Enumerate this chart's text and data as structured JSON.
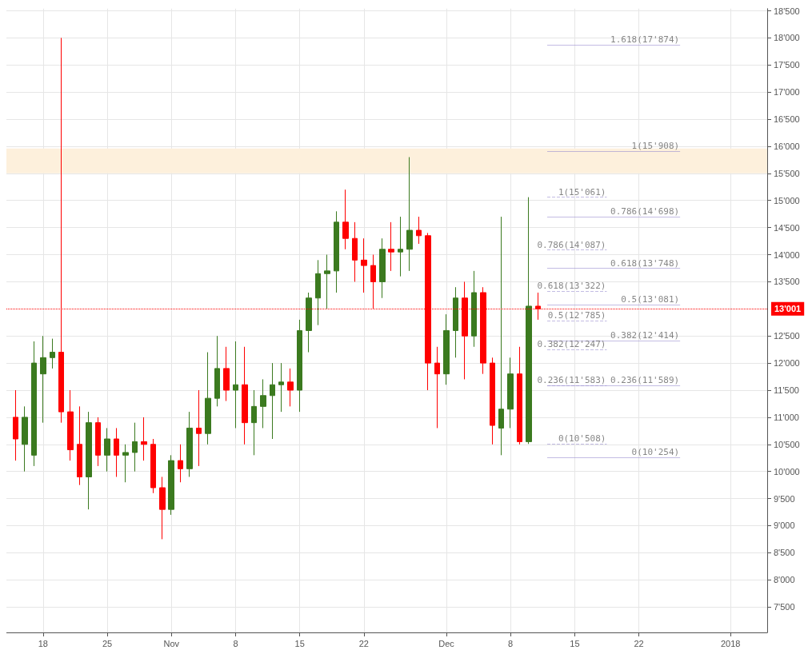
{
  "chart_data": {
    "type": "candlestick",
    "x": [
      "2017-10-15",
      "2017-10-16",
      "2017-10-17",
      "2017-10-18",
      "2017-10-19",
      "2017-10-20",
      "2017-10-21",
      "2017-10-22",
      "2017-10-23",
      "2017-10-24",
      "2017-10-25",
      "2017-10-26",
      "2017-10-27",
      "2017-10-28",
      "2017-10-29",
      "2017-10-30",
      "2017-10-31",
      "2017-11-01",
      "2017-11-02",
      "2017-11-03",
      "2017-11-04",
      "2017-11-05",
      "2017-11-06",
      "2017-11-07",
      "2017-11-08",
      "2017-11-09",
      "2017-11-10",
      "2017-11-11",
      "2017-11-12",
      "2017-11-13",
      "2017-11-14",
      "2017-11-15",
      "2017-11-16",
      "2017-11-17",
      "2017-11-18",
      "2017-11-19",
      "2017-11-20",
      "2017-11-21",
      "2017-11-22",
      "2017-11-23",
      "2017-11-24",
      "2017-11-25",
      "2017-11-26",
      "2017-11-27",
      "2017-11-28",
      "2017-11-29",
      "2017-11-30",
      "2017-12-01",
      "2017-12-02",
      "2017-12-03",
      "2017-12-04",
      "2017-12-05",
      "2017-12-06",
      "2017-12-07",
      "2017-12-08",
      "2017-12-09",
      "2017-12-10",
      "2017-12-11"
    ],
    "ohlc": [
      [
        11000,
        11500,
        10200,
        10600
      ],
      [
        10500,
        11200,
        10000,
        11000
      ],
      [
        10300,
        12400,
        10100,
        12000
      ],
      [
        11800,
        12500,
        10900,
        12100
      ],
      [
        12100,
        12450,
        11900,
        12200
      ],
      [
        12200,
        18000,
        10900,
        11100
      ],
      [
        11100,
        11500,
        10200,
        10400
      ],
      [
        10500,
        11200,
        9750,
        9900
      ],
      [
        9900,
        11100,
        9300,
        10900
      ],
      [
        10900,
        11000,
        10100,
        10300
      ],
      [
        10300,
        10800,
        10000,
        10600
      ],
      [
        10600,
        10800,
        9900,
        10300
      ],
      [
        10300,
        10500,
        9800,
        10350
      ],
      [
        10350,
        10900,
        10000,
        10550
      ],
      [
        10550,
        11000,
        10200,
        10500
      ],
      [
        10500,
        10600,
        9600,
        9700
      ],
      [
        9700,
        9900,
        8750,
        9300
      ],
      [
        9300,
        10300,
        9200,
        10200
      ],
      [
        10200,
        10500,
        9800,
        10050
      ],
      [
        10050,
        11100,
        9900,
        10800
      ],
      [
        10800,
        11500,
        10100,
        10700
      ],
      [
        10700,
        12200,
        10500,
        11350
      ],
      [
        11350,
        12500,
        11200,
        11900
      ],
      [
        11900,
        12300,
        11300,
        11500
      ],
      [
        11500,
        12400,
        10800,
        11600
      ],
      [
        11600,
        12300,
        10500,
        10900
      ],
      [
        10900,
        11500,
        10300,
        11200
      ],
      [
        11200,
        11700,
        10800,
        11400
      ],
      [
        11400,
        12000,
        10600,
        11600
      ],
      [
        11600,
        12000,
        11100,
        11650
      ],
      [
        11650,
        11900,
        11200,
        11500
      ],
      [
        11500,
        12800,
        11100,
        12600
      ],
      [
        12600,
        13300,
        12200,
        13200
      ],
      [
        13200,
        13900,
        12700,
        13650
      ],
      [
        13650,
        14000,
        13000,
        13700
      ],
      [
        13700,
        14800,
        13300,
        14600
      ],
      [
        14600,
        15200,
        14100,
        14300
      ],
      [
        14300,
        14600,
        13500,
        13900
      ],
      [
        13900,
        14300,
        13300,
        13800
      ],
      [
        13800,
        14000,
        13000,
        13500
      ],
      [
        13500,
        14300,
        13200,
        14100
      ],
      [
        14100,
        14600,
        13700,
        14050
      ],
      [
        14050,
        14700,
        13600,
        14100
      ],
      [
        14100,
        15800,
        13700,
        14450
      ],
      [
        14450,
        14700,
        14200,
        14350
      ],
      [
        14350,
        14400,
        11500,
        12000
      ],
      [
        12000,
        12300,
        10800,
        11800
      ],
      [
        11800,
        12900,
        11600,
        12600
      ],
      [
        12600,
        13400,
        12100,
        13200
      ],
      [
        13200,
        13500,
        11700,
        12500
      ],
      [
        12500,
        13700,
        12300,
        13300
      ],
      [
        13300,
        13400,
        11800,
        12000
      ],
      [
        12000,
        12100,
        10500,
        10850
      ],
      [
        10800,
        14700,
        10300,
        11150
      ],
      [
        11150,
        12100,
        10800,
        11800
      ],
      [
        11800,
        12300,
        10500,
        10550
      ],
      [
        10550,
        15061,
        10508,
        13050
      ],
      [
        13050,
        13300,
        12800,
        13001
      ]
    ],
    "xlim": [
      "2017-10-14",
      "2018-01-05"
    ],
    "xticks": [
      {
        "value": "2017-10-18",
        "label": "18"
      },
      {
        "value": "2017-10-25",
        "label": "25"
      },
      {
        "value": "2017-11-01",
        "label": "Nov"
      },
      {
        "value": "2017-11-08",
        "label": "8"
      },
      {
        "value": "2017-11-15",
        "label": "15"
      },
      {
        "value": "2017-11-22",
        "label": "22"
      },
      {
        "value": "2017-12-01",
        "label": "Dec"
      },
      {
        "value": "2017-12-08",
        "label": "8"
      },
      {
        "value": "2017-12-15",
        "label": "15"
      },
      {
        "value": "2017-12-22",
        "label": "22"
      },
      {
        "value": "2018-01-01",
        "label": "2018"
      }
    ],
    "ylim": [
      7030,
      18540
    ],
    "yticks": [
      {
        "value": 7500,
        "label": "7'500"
      },
      {
        "value": 8000,
        "label": "8'000"
      },
      {
        "value": 8500,
        "label": "8'500"
      },
      {
        "value": 9000,
        "label": "9'000"
      },
      {
        "value": 9500,
        "label": "9'500"
      },
      {
        "value": 10000,
        "label": "10'000"
      },
      {
        "value": 10500,
        "label": "10'500"
      },
      {
        "value": 11000,
        "label": "11'000"
      },
      {
        "value": 11500,
        "label": "11'500"
      },
      {
        "value": 12000,
        "label": "12'000"
      },
      {
        "value": 12500,
        "label": "12'500"
      },
      {
        "value": 13500,
        "label": "13'500"
      },
      {
        "value": 14000,
        "label": "14'000"
      },
      {
        "value": 14500,
        "label": "14'500"
      },
      {
        "value": 15000,
        "label": "15'000"
      },
      {
        "value": 15500,
        "label": "15'500"
      },
      {
        "value": 16000,
        "label": "16'000"
      },
      {
        "value": 16500,
        "label": "16'500"
      },
      {
        "value": 17000,
        "label": "17'000"
      },
      {
        "value": 17500,
        "label": "17'500"
      },
      {
        "value": 18000,
        "label": "18'000"
      },
      {
        "value": 18500,
        "label": "18'500"
      }
    ],
    "ref_lines": [
      {
        "axis": "y",
        "value": 13001,
        "label": "13'001",
        "color": "#ff0000",
        "line_style": "dotted"
      },
      {
        "axis": "y",
        "value": 17874,
        "label": "1.618(17'874)",
        "color": "#9b8fd0",
        "line_style": "solid"
      },
      {
        "axis": "y",
        "value": 15908,
        "label": "1(15'908)",
        "color": "#9b8fd0",
        "line_style": "solid"
      },
      {
        "axis": "y",
        "value": 14698,
        "label": "0.786(14'698)",
        "color": "#9b8fd0",
        "line_style": "solid"
      },
      {
        "axis": "y",
        "value": 13748,
        "label": "0.618(13'748)",
        "color": "#9b8fd0",
        "line_style": "solid"
      },
      {
        "axis": "y",
        "value": 13081,
        "label": "0.5(13'081)",
        "color": "#9b8fd0",
        "line_style": "solid"
      },
      {
        "axis": "y",
        "value": 12414,
        "label": "0.382(12'414)",
        "color": "#9b8fd0",
        "line_style": "solid"
      },
      {
        "axis": "y",
        "value": 11589,
        "label": "0.236(11'589)",
        "color": "#9b8fd0",
        "line_style": "solid"
      },
      {
        "axis": "y",
        "value": 10254,
        "label": "0(10'254)",
        "color": "#9b8fd0",
        "line_style": "solid"
      },
      {
        "axis": "y",
        "value": 15061,
        "label": "1(15'061)",
        "color": "#9b8fd0",
        "line_style": "dashed"
      },
      {
        "axis": "y",
        "value": 14087,
        "label": "0.786(14'087)",
        "color": "#9b8fd0",
        "line_style": "dashed"
      },
      {
        "axis": "y",
        "value": 13322,
        "label": "0.618(13'322)",
        "color": "#9b8fd0",
        "line_style": "dashed"
      },
      {
        "axis": "y",
        "value": 12785,
        "label": "0.5(12'785)",
        "color": "#9b8fd0",
        "line_style": "dashed"
      },
      {
        "axis": "y",
        "value": 12247,
        "label": "0.382(12'247)",
        "color": "#9b8fd0",
        "line_style": "dashed"
      },
      {
        "axis": "y",
        "value": 11583,
        "label": "0.236(11'583)",
        "color": "#9b8fd0",
        "line_style": "dashed"
      },
      {
        "axis": "y",
        "value": 10508,
        "label": "0(10'508)",
        "color": "#9b8fd0",
        "line_style": "dashed"
      }
    ],
    "bands": [
      {
        "axis": "y",
        "from": 15500,
        "to": 15960,
        "color": "#fdf0dc"
      }
    ],
    "grid": true
  }
}
